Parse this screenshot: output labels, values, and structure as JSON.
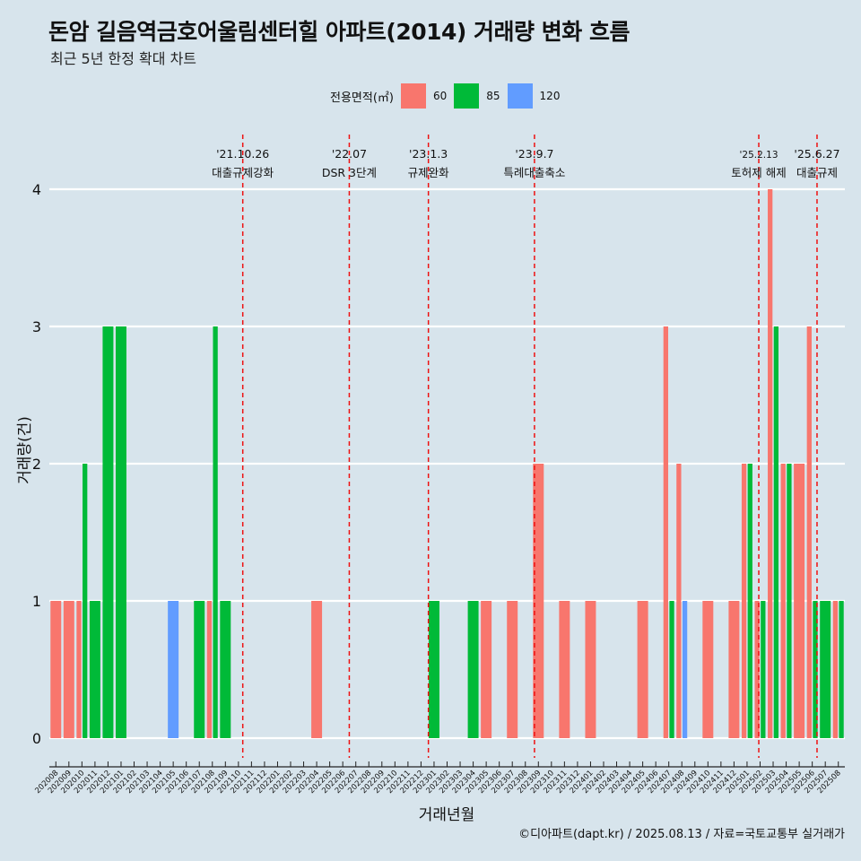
{
  "header": {
    "title": "돈암 길음역금호어울림센터힐 아파트(2014) 거래량 변화 흐름",
    "subtitle": "최근 5년 한정 확대 차트"
  },
  "legend": {
    "title": "전용면적(㎡)",
    "items": [
      {
        "label": "60",
        "color": "#f8766d"
      },
      {
        "label": "85",
        "color": "#00ba38"
      },
      {
        "label": "120",
        "color": "#619cff"
      }
    ]
  },
  "caption": "©디아파트(dapt.kr) / 2025.08.13 / 자료=국토교통부 실거래가",
  "chart_data": {
    "type": "bar",
    "xlabel": "거래년월",
    "ylabel": "거래량(건)",
    "ylim": [
      0,
      4
    ],
    "yticks": [
      0,
      1,
      2,
      3,
      4
    ],
    "grid": "horizontal",
    "legend_position": "top",
    "categories": [
      "202008",
      "202009",
      "202010",
      "202011",
      "202012",
      "202101",
      "202102",
      "202103",
      "202104",
      "202105",
      "202106",
      "202107",
      "202108",
      "202109",
      "202110",
      "202111",
      "202112",
      "202201",
      "202202",
      "202203",
      "202204",
      "202205",
      "202206",
      "202207",
      "202208",
      "202209",
      "202210",
      "202211",
      "202212",
      "202301",
      "202302",
      "202303",
      "202304",
      "202305",
      "202306",
      "202307",
      "202308",
      "202309",
      "202310",
      "202311",
      "202312",
      "202401",
      "202402",
      "202403",
      "202404",
      "202405",
      "202406",
      "202407",
      "202408",
      "202409",
      "202410",
      "202411",
      "202412",
      "202501",
      "202502",
      "202503",
      "202504",
      "202505",
      "202506",
      "202507",
      "202508"
    ],
    "series": [
      {
        "name": "60",
        "color": "#f8766d",
        "values": [
          1,
          1,
          1,
          0,
          0,
          0,
          0,
          0,
          0,
          0,
          0,
          0,
          1,
          0,
          0,
          0,
          0,
          0,
          0,
          0,
          1,
          0,
          0,
          0,
          0,
          0,
          0,
          0,
          0,
          0,
          0,
          0,
          0,
          1,
          0,
          1,
          0,
          2,
          0,
          1,
          0,
          1,
          0,
          0,
          0,
          1,
          0,
          3,
          2,
          0,
          1,
          0,
          1,
          2,
          1,
          4,
          2,
          2,
          3,
          0,
          1
        ]
      },
      {
        "name": "85",
        "color": "#00ba38",
        "values": [
          0,
          0,
          2,
          1,
          3,
          3,
          0,
          0,
          0,
          0,
          0,
          1,
          3,
          1,
          0,
          0,
          0,
          0,
          0,
          0,
          0,
          0,
          0,
          0,
          0,
          0,
          0,
          0,
          0,
          1,
          0,
          0,
          1,
          0,
          0,
          0,
          0,
          0,
          0,
          0,
          0,
          0,
          0,
          0,
          0,
          0,
          0,
          1,
          0,
          0,
          0,
          0,
          0,
          2,
          1,
          3,
          2,
          0,
          1,
          1,
          1
        ]
      },
      {
        "name": "120",
        "color": "#619cff",
        "values": [
          0,
          0,
          0,
          0,
          0,
          0,
          0,
          0,
          0,
          1,
          0,
          0,
          0,
          0,
          0,
          0,
          0,
          0,
          0,
          0,
          0,
          0,
          0,
          0,
          0,
          0,
          0,
          0,
          0,
          0,
          0,
          0,
          0,
          0,
          0,
          0,
          0,
          0,
          0,
          0,
          0,
          0,
          0,
          0,
          0,
          0,
          0,
          0,
          1,
          0,
          0,
          0,
          0,
          0,
          0,
          0,
          0,
          0,
          0,
          0,
          0
        ]
      }
    ],
    "events": [
      {
        "date_line1": "'21.10.26",
        "date_line2": "대출규제강화",
        "month": "202110",
        "day": 26
      },
      {
        "date_line1": "'22.07",
        "date_line2": "DSR 3단계",
        "month": "202207",
        "day": 1
      },
      {
        "date_line1": "'23.1.3",
        "date_line2": "규제완화",
        "month": "202301",
        "day": 3
      },
      {
        "date_line1": "'23.9.7",
        "date_line2": "특례대출축소",
        "month": "202309",
        "day": 7
      },
      {
        "date_line1": "'25.2.13",
        "date_line2": "토허제 해제",
        "month": "202502",
        "day": 13
      },
      {
        "date_line1": "'25.6.27",
        "date_line2": "대출규제",
        "month": "202506",
        "day": 27
      }
    ]
  }
}
